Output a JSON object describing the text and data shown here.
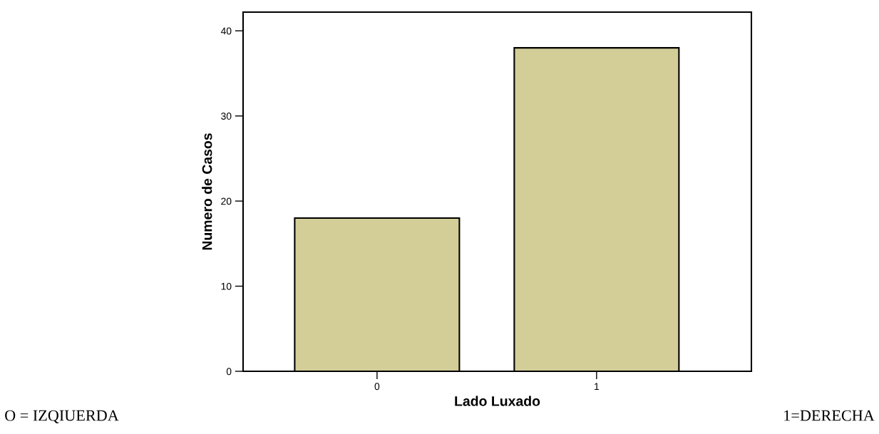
{
  "chart_data": {
    "type": "bar",
    "xlabel": "Lado Luxado",
    "ylabel": "Numero de Casos",
    "categories": [
      "0",
      "1"
    ],
    "values": [
      18,
      38
    ],
    "color": "#d3cd98",
    "ylim": [
      0,
      42.2
    ],
    "yticks": [
      0,
      10,
      20,
      30,
      40
    ],
    "grid": false,
    "annotations": [
      "O = IZQIUERDA",
      "1=DERECHA"
    ]
  }
}
